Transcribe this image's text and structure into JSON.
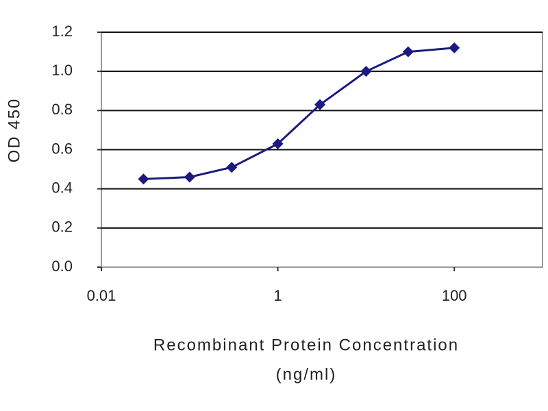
{
  "chart_data": {
    "type": "line",
    "xlabel": [
      "Recombinant Protein Concentration",
      "(ng/ml)"
    ],
    "ylabel": "OD 450",
    "x": [
      0.03,
      0.1,
      0.3,
      1,
      3,
      10,
      30,
      100
    ],
    "series": [
      {
        "color": "#1a1a80",
        "values": [
          0.45,
          0.46,
          0.51,
          0.63,
          0.83,
          1.0,
          1.1,
          1.12
        ]
      }
    ],
    "xscale": "log",
    "xlim": [
      0.01,
      1000
    ],
    "xticks": [
      0.01,
      1,
      100
    ],
    "ylim": [
      0,
      1.2
    ],
    "yticks": [
      {
        "value": 0,
        "label": "0.0"
      },
      0.2,
      0.4,
      0.6,
      0.8,
      {
        "value": 1,
        "label": "1.0"
      },
      1.2
    ],
    "grid": true
  }
}
